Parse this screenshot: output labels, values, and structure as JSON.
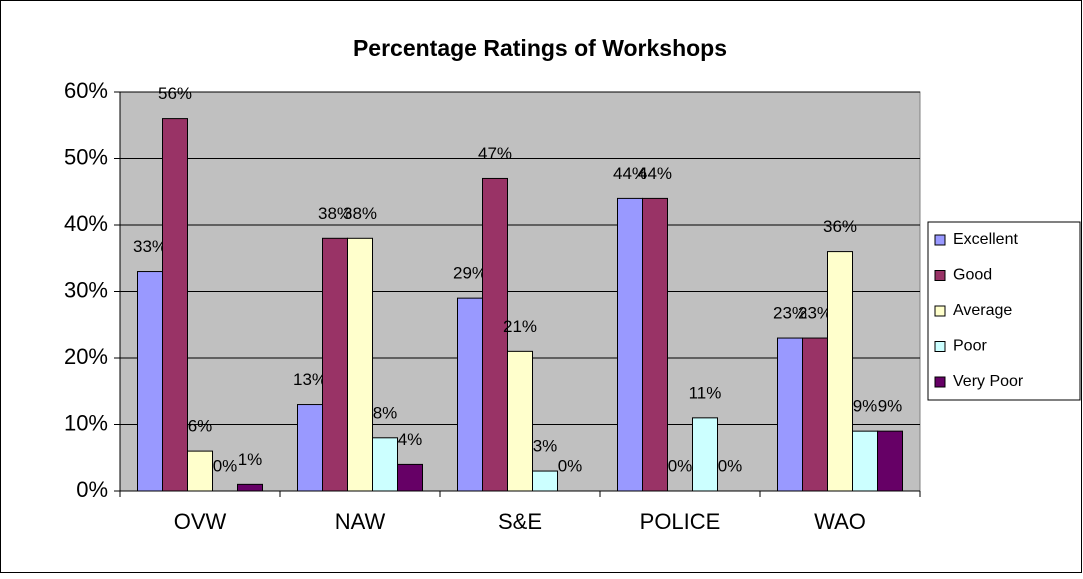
{
  "chart_data": {
    "type": "bar",
    "title": "Percentage Ratings of Workshops",
    "categories": [
      "OVW",
      "NAW",
      "S&E",
      "POLICE",
      "WAO"
    ],
    "series": [
      {
        "name": "Excellent",
        "color": "#9999ff",
        "values": [
          33,
          13,
          29,
          44,
          23
        ],
        "value_labels": [
          "33%",
          "13%",
          "29%",
          "44%",
          "23%"
        ]
      },
      {
        "name": "Good",
        "color": "#993366",
        "values": [
          56,
          38,
          47,
          44,
          23
        ],
        "value_labels": [
          "56%",
          "38%",
          "47%",
          "44%",
          "23%"
        ]
      },
      {
        "name": "Average",
        "color": "#ffffcc",
        "values": [
          6,
          38,
          21,
          0,
          36
        ],
        "value_labels": [
          "6%",
          "38%",
          "21%",
          "0%",
          "36%"
        ]
      },
      {
        "name": "Poor",
        "color": "#ccffff",
        "values": [
          0,
          8,
          3,
          11,
          9
        ],
        "value_labels": [
          "0%",
          "8%",
          "3%",
          "11%",
          "9%"
        ]
      },
      {
        "name": "Very Poor",
        "color": "#660066",
        "values": [
          1,
          4,
          0,
          0,
          9
        ],
        "value_labels": [
          "1%",
          "4%",
          "0%",
          "0%",
          "9%"
        ]
      }
    ],
    "ylim": [
      0,
      60
    ],
    "yticks": [
      {
        "value": 0,
        "label": "0%"
      },
      {
        "value": 10,
        "label": "10%"
      },
      {
        "value": 20,
        "label": "20%"
      },
      {
        "value": 30,
        "label": "30%"
      },
      {
        "value": 40,
        "label": "40%"
      },
      {
        "value": 50,
        "label": "50%"
      },
      {
        "value": 60,
        "label": "60%"
      }
    ],
    "grid": true,
    "legend": "right",
    "plot_background": "#c0c0c0"
  }
}
